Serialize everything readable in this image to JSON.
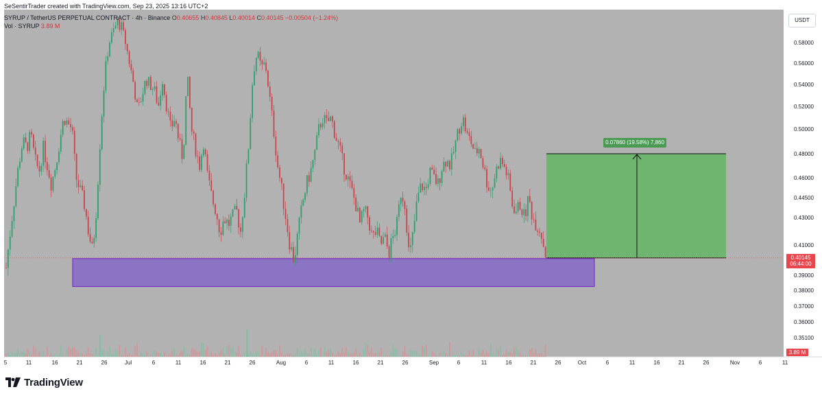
{
  "header": {
    "credit": "SeSentirTrader created with TradingView.com, Sep 23, 2025 13:16 UTC+2",
    "symbol": "SYRUP / TetherUS PERPETUAL CONTRACT · 4h · Binance",
    "open_label": "O",
    "open": "0.40655",
    "high_label": "H",
    "high": "0.40845",
    "low_label": "L",
    "low": "0.40014",
    "close_label": "C",
    "close": "0.40145",
    "change": "−0.00504 (−1.24%)",
    "vol_label": "Vol · SYRUP",
    "vol_value": "3.89 M"
  },
  "currency": "USDT",
  "last_price": "0.40145",
  "countdown": "06:44:00",
  "volume_tag": "3.89 M",
  "measure_label": "0.07860 (19.58%) 7,860",
  "brand": "TradingView",
  "colors": {
    "background": "#b2b2b2",
    "up": "#2e9e6e",
    "down": "#c9434b",
    "zone_fill": "#8c74c4",
    "zone_border": "#7b2fc9",
    "target_fill": "#6fb56f",
    "price_tag": "#e8454d"
  },
  "chart_data": {
    "type": "candlestick",
    "symbol": "SYRUP / TetherUS PERPETUAL CONTRACT",
    "y_ticks": [
      "0.58000",
      "0.56000",
      "0.54000",
      "0.52000",
      "0.50000",
      "0.48000",
      "0.46000",
      "0.44500",
      "0.43000",
      "0.41000",
      "0.39000",
      "0.38000",
      "0.37000",
      "0.36000",
      "0.35100"
    ],
    "y_tick_values": [
      0.58,
      0.56,
      0.54,
      0.52,
      0.5,
      0.48,
      0.46,
      0.445,
      0.43,
      0.41,
      0.39,
      0.38,
      0.37,
      0.36,
      0.351
    ],
    "x_ticks": [
      "5",
      "11",
      "16",
      "21",
      "26",
      "Jul",
      "6",
      "11",
      "16",
      "21",
      "26",
      "Aug",
      "6",
      "11",
      "16",
      "21",
      "26",
      "Sep",
      "6",
      "11",
      "16",
      "21",
      "26",
      "Oct",
      "6",
      "11",
      "16",
      "21",
      "26",
      "Nov",
      "6",
      "11"
    ],
    "close_path": [
      [
        0,
        0.395
      ],
      [
        6,
        0.42
      ],
      [
        12,
        0.445
      ],
      [
        18,
        0.47
      ],
      [
        24,
        0.49
      ],
      [
        30,
        0.485
      ],
      [
        36,
        0.495
      ],
      [
        42,
        0.475
      ],
      [
        48,
        0.465
      ],
      [
        54,
        0.485
      ],
      [
        60,
        0.47
      ],
      [
        66,
        0.455
      ],
      [
        72,
        0.47
      ],
      [
        78,
        0.49
      ],
      [
        84,
        0.51
      ],
      [
        90,
        0.505
      ],
      [
        96,
        0.5
      ],
      [
        102,
        0.46
      ],
      [
        108,
        0.45
      ],
      [
        114,
        0.44
      ],
      [
        120,
        0.42
      ],
      [
        126,
        0.405
      ],
      [
        132,
        0.44
      ],
      [
        138,
        0.5
      ],
      [
        144,
        0.55
      ],
      [
        150,
        0.58
      ],
      [
        156,
        0.59
      ],
      [
        162,
        0.6
      ],
      [
        168,
        0.595
      ],
      [
        174,
        0.58
      ],
      [
        180,
        0.56
      ],
      [
        186,
        0.54
      ],
      [
        192,
        0.515
      ],
      [
        198,
        0.53
      ],
      [
        204,
        0.545
      ],
      [
        210,
        0.54
      ],
      [
        216,
        0.535
      ],
      [
        222,
        0.52
      ],
      [
        228,
        0.545
      ],
      [
        234,
        0.52
      ],
      [
        240,
        0.5
      ],
      [
        246,
        0.51
      ],
      [
        252,
        0.49
      ],
      [
        258,
        0.475
      ],
      [
        264,
        0.55
      ],
      [
        270,
        0.5
      ],
      [
        276,
        0.485
      ],
      [
        282,
        0.47
      ],
      [
        288,
        0.49
      ],
      [
        294,
        0.46
      ],
      [
        300,
        0.445
      ],
      [
        306,
        0.435
      ],
      [
        312,
        0.42
      ],
      [
        318,
        0.43
      ],
      [
        324,
        0.425
      ],
      [
        330,
        0.43
      ],
      [
        336,
        0.435
      ],
      [
        342,
        0.42
      ],
      [
        348,
        0.45
      ],
      [
        354,
        0.49
      ],
      [
        360,
        0.55
      ],
      [
        366,
        0.57
      ],
      [
        372,
        0.555
      ],
      [
        378,
        0.56
      ],
      [
        384,
        0.53
      ],
      [
        390,
        0.5
      ],
      [
        396,
        0.47
      ],
      [
        402,
        0.45
      ],
      [
        408,
        0.43
      ],
      [
        414,
        0.41
      ],
      [
        420,
        0.4
      ],
      [
        426,
        0.42
      ],
      [
        432,
        0.44
      ],
      [
        438,
        0.455
      ],
      [
        444,
        0.465
      ],
      [
        450,
        0.48
      ],
      [
        456,
        0.5
      ],
      [
        462,
        0.51
      ],
      [
        468,
        0.505
      ],
      [
        474,
        0.51
      ],
      [
        480,
        0.495
      ],
      [
        486,
        0.485
      ],
      [
        492,
        0.47
      ],
      [
        498,
        0.46
      ],
      [
        504,
        0.45
      ],
      [
        510,
        0.44
      ],
      [
        516,
        0.425
      ],
      [
        522,
        0.435
      ],
      [
        528,
        0.43
      ],
      [
        534,
        0.415
      ],
      [
        540,
        0.42
      ],
      [
        546,
        0.41
      ],
      [
        552,
        0.415
      ],
      [
        558,
        0.405
      ],
      [
        564,
        0.415
      ],
      [
        570,
        0.425
      ],
      [
        576,
        0.45
      ],
      [
        582,
        0.44
      ],
      [
        588,
        0.4
      ],
      [
        594,
        0.42
      ],
      [
        600,
        0.445
      ],
      [
        606,
        0.455
      ],
      [
        612,
        0.45
      ],
      [
        618,
        0.465
      ],
      [
        624,
        0.46
      ],
      [
        630,
        0.455
      ],
      [
        636,
        0.47
      ],
      [
        642,
        0.475
      ],
      [
        648,
        0.47
      ],
      [
        654,
        0.485
      ],
      [
        660,
        0.5
      ],
      [
        666,
        0.51
      ],
      [
        672,
        0.495
      ],
      [
        678,
        0.49
      ],
      [
        684,
        0.48
      ],
      [
        690,
        0.485
      ],
      [
        696,
        0.47
      ],
      [
        702,
        0.455
      ],
      [
        708,
        0.45
      ],
      [
        714,
        0.465
      ],
      [
        720,
        0.475
      ],
      [
        726,
        0.47
      ],
      [
        732,
        0.46
      ],
      [
        738,
        0.44
      ],
      [
        744,
        0.435
      ],
      [
        750,
        0.44
      ],
      [
        756,
        0.43
      ],
      [
        762,
        0.445
      ],
      [
        768,
        0.43
      ],
      [
        774,
        0.425
      ],
      [
        780,
        0.42
      ],
      [
        786,
        0.405
      ],
      [
        792,
        0.4015
      ]
    ],
    "support_zone": {
      "from_x": "21",
      "to_x": "3 Oct",
      "top": 0.401,
      "bottom": 0.3825
    },
    "target_box": {
      "from_x": "25 Sep",
      "to_x": "13 Oct",
      "entry": 0.4015,
      "target": 0.48,
      "label": "0.07860 (19.58%) 7,860"
    },
    "last_price": 0.40145
  }
}
